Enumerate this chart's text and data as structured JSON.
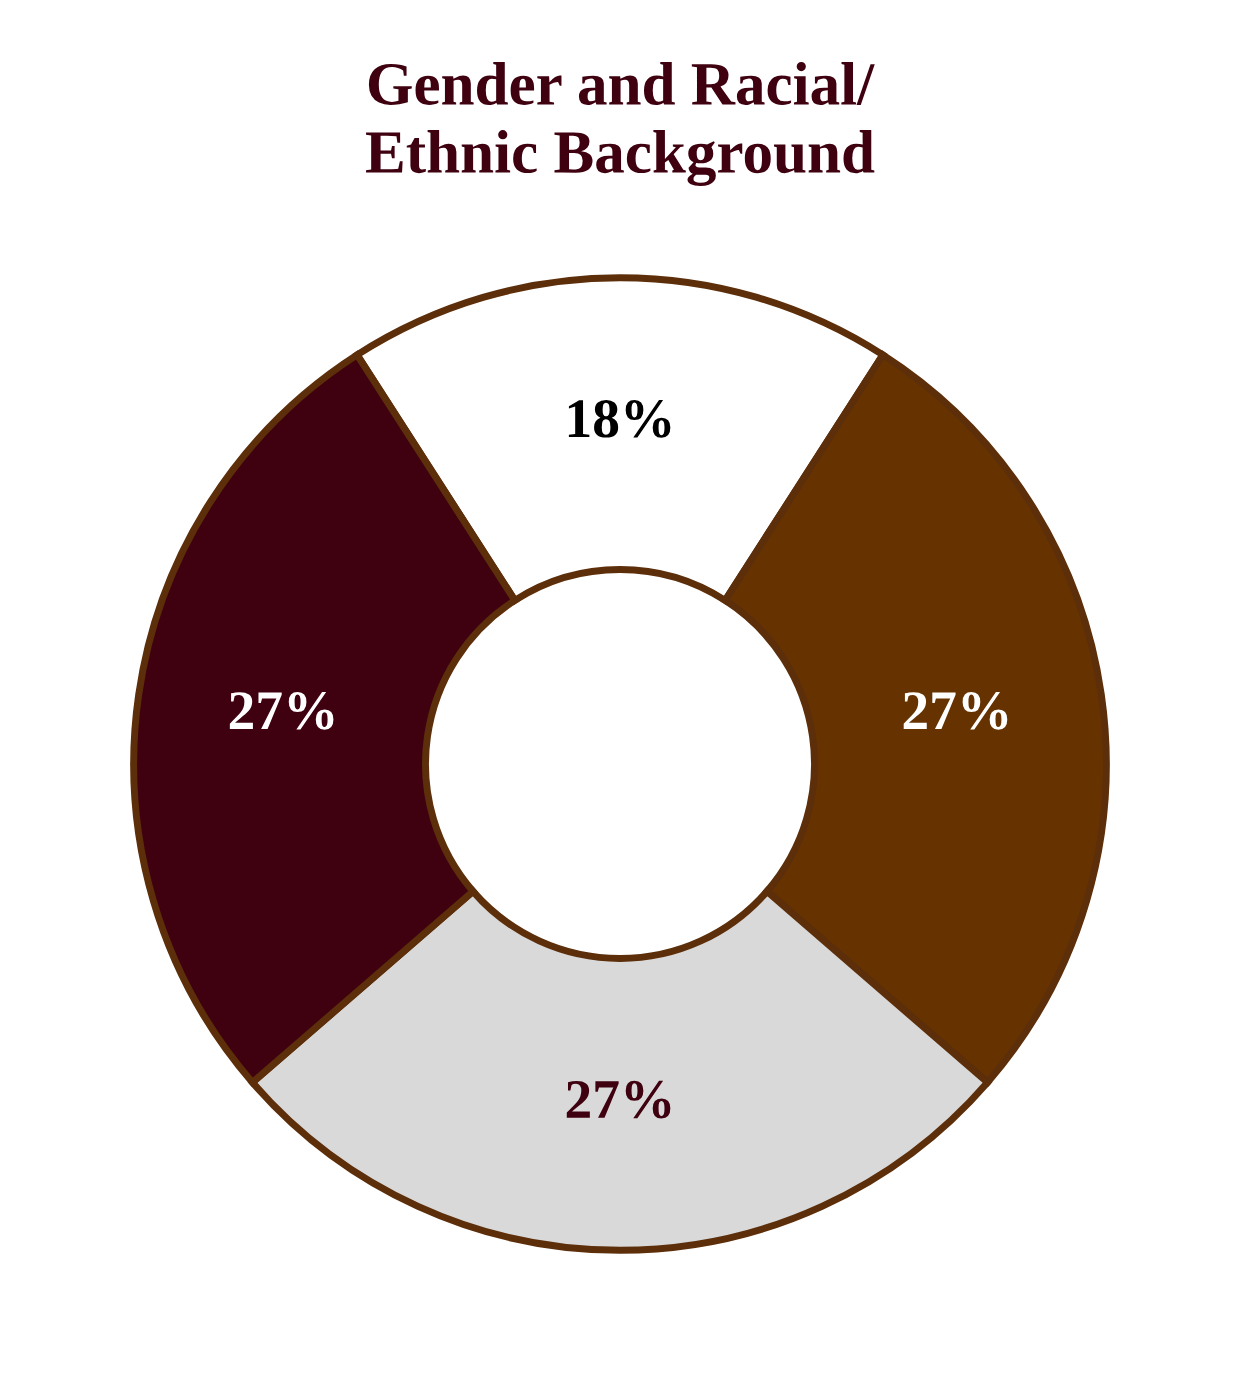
{
  "chart_data": {
    "type": "donut",
    "title": "Gender and Racial/\nEthnic Background",
    "categories": [
      null,
      null,
      null,
      null
    ],
    "values": [
      18,
      27,
      27,
      27
    ],
    "colors": [
      "#ffffff",
      "#663300",
      "#d9d9d9",
      "#3f0010"
    ],
    "value_labels": [
      "18%",
      "27%",
      "27%",
      "27%"
    ],
    "legend": false
  }
}
